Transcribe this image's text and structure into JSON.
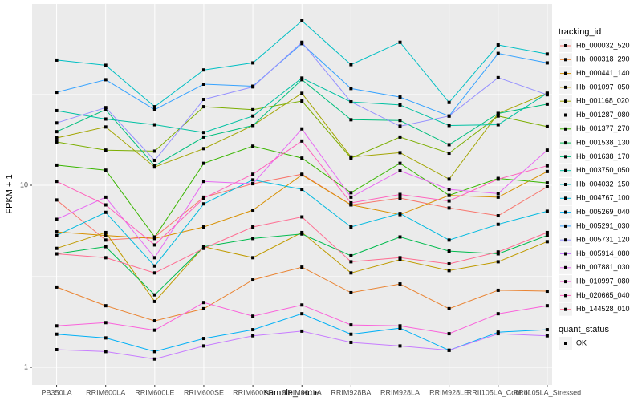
{
  "chart_data": {
    "type": "line",
    "x_label": "sample_name",
    "y_label": "FPKM + 1",
    "log_y": true,
    "grid": true,
    "categories": [
      "PB350LA",
      "RRIM600LA",
      "RRIM600LE",
      "RRIM600SE",
      "RRIM600PE",
      "RRIM901LA",
      "RRIM928BA",
      "RRIM928LA",
      "RRIM928LE",
      "RRII105LA_Control",
      "RRII105LA_Stressed"
    ],
    "ylim": [
      0.8,
      99
    ],
    "yticks": [
      1,
      10
    ],
    "legend_title": "tracking_id",
    "shape_legend": {
      "title": "quant_status",
      "labels": [
        "OK"
      ]
    },
    "series": [
      {
        "name": "Hb_000032_520",
        "color": "#F8766D",
        "values": [
          8.3,
          5.0,
          5.2,
          8.6,
          10.2,
          11.5,
          7.8,
          8.5,
          7.5,
          6.8,
          9.8
        ]
      },
      {
        "name": "Hb_000318_290",
        "color": "#EA8331",
        "values": [
          2.76,
          2.18,
          1.8,
          2.1,
          3.02,
          3.55,
          2.57,
          2.87,
          2.1,
          2.65,
          2.62
        ]
      },
      {
        "name": "Hb_000441_140",
        "color": "#D89000",
        "values": [
          5.55,
          5.3,
          5.1,
          5.9,
          7.3,
          11.4,
          7.8,
          6.9,
          8.8,
          8.6,
          11.9
        ]
      },
      {
        "name": "Hb_001097_050",
        "color": "#C09B00",
        "values": [
          4.5,
          5.5,
          2.3,
          4.6,
          4.0,
          5.5,
          3.3,
          3.9,
          3.4,
          3.8,
          4.9
        ]
      },
      {
        "name": "Hb_001168_020",
        "color": "#A3A500",
        "values": [
          18.2,
          20.9,
          12.6,
          15.9,
          21.3,
          32,
          14.3,
          15.1,
          10.8,
          24.8,
          32
        ]
      },
      {
        "name": "Hb_001287_080",
        "color": "#7CAE00",
        "values": [
          17.3,
          15.6,
          15.4,
          27,
          26,
          29,
          14.1,
          18.4,
          15,
          24,
          21
        ]
      },
      {
        "name": "Hb_001377_270",
        "color": "#39B600",
        "values": [
          12.9,
          12.1,
          5.2,
          13.2,
          16.4,
          14.1,
          9.1,
          13.2,
          8.8,
          10.9,
          10.3
        ]
      },
      {
        "name": "Hb_001538_130",
        "color": "#00BB4E",
        "values": [
          4.2,
          4.6,
          2.5,
          4.6,
          5.1,
          5.4,
          4.1,
          5.2,
          4.35,
          4.2,
          5.3
        ]
      },
      {
        "name": "Hb_001638_170",
        "color": "#00BF7D",
        "values": [
          19.7,
          26,
          12.8,
          18.4,
          21.3,
          38,
          22.9,
          22.7,
          16.7,
          24.8,
          27.9
        ]
      },
      {
        "name": "Hb_003750_050",
        "color": "#00C1A3",
        "values": [
          25.7,
          23.1,
          21.5,
          19.5,
          24,
          38.8,
          28.7,
          27.6,
          21.3,
          21.5,
          32
        ]
      },
      {
        "name": "Hb_004032_150",
        "color": "#00BFC4",
        "values": [
          48.7,
          45.6,
          27,
          43,
          47,
          80,
          46,
          61,
          28.5,
          59,
          52.6
        ]
      },
      {
        "name": "Hb_004767_100",
        "color": "#00BAE0",
        "values": [
          5.3,
          7.1,
          3.6,
          7.9,
          10.7,
          9.5,
          5.9,
          7.0,
          5.0,
          6.1,
          7.2
        ]
      },
      {
        "name": "Hb_005269_040",
        "color": "#00B0F6",
        "values": [
          1.52,
          1.45,
          1.22,
          1.44,
          1.61,
          1.97,
          1.52,
          1.64,
          1.24,
          1.56,
          1.61
        ]
      },
      {
        "name": "Hb_005291_030",
        "color": "#35A2FF",
        "values": [
          32.4,
          38,
          26,
          35.9,
          35,
          60,
          34,
          30.5,
          24,
          53,
          47
        ]
      },
      {
        "name": "Hb_005731_120",
        "color": "#9590FF",
        "values": [
          22,
          26.7,
          13.7,
          29.6,
          34.7,
          61,
          28.7,
          21.1,
          24,
          39,
          31.4
        ]
      },
      {
        "name": "Hb_005914_080",
        "color": "#C77CFF",
        "values": [
          1.25,
          1.22,
          1.11,
          1.31,
          1.49,
          1.58,
          1.37,
          1.31,
          1.24,
          1.53,
          1.49
        ]
      },
      {
        "name": "Hb_007881_030",
        "color": "#E76BF3",
        "values": [
          6.5,
          8.6,
          4.0,
          10.5,
          10.2,
          20.4,
          8.6,
          12,
          9.5,
          9.0,
          15.6
        ]
      },
      {
        "name": "Hb_010997_080",
        "color": "#FA62DB",
        "values": [
          1.69,
          1.76,
          1.6,
          2.27,
          1.91,
          2.2,
          1.71,
          1.69,
          1.53,
          1.97,
          2.18
        ]
      },
      {
        "name": "Hb_020665_040",
        "color": "#FF62BC",
        "values": [
          10.5,
          7.8,
          4.7,
          8.5,
          11.5,
          17.5,
          8.0,
          8.9,
          8.2,
          10.8,
          12.8
        ]
      },
      {
        "name": "Hb_144528_010",
        "color": "#FF6C91",
        "values": [
          4.2,
          4.0,
          3.3,
          4.5,
          5.9,
          6.7,
          3.8,
          4.0,
          3.7,
          4.3,
          5.5
        ]
      }
    ]
  }
}
